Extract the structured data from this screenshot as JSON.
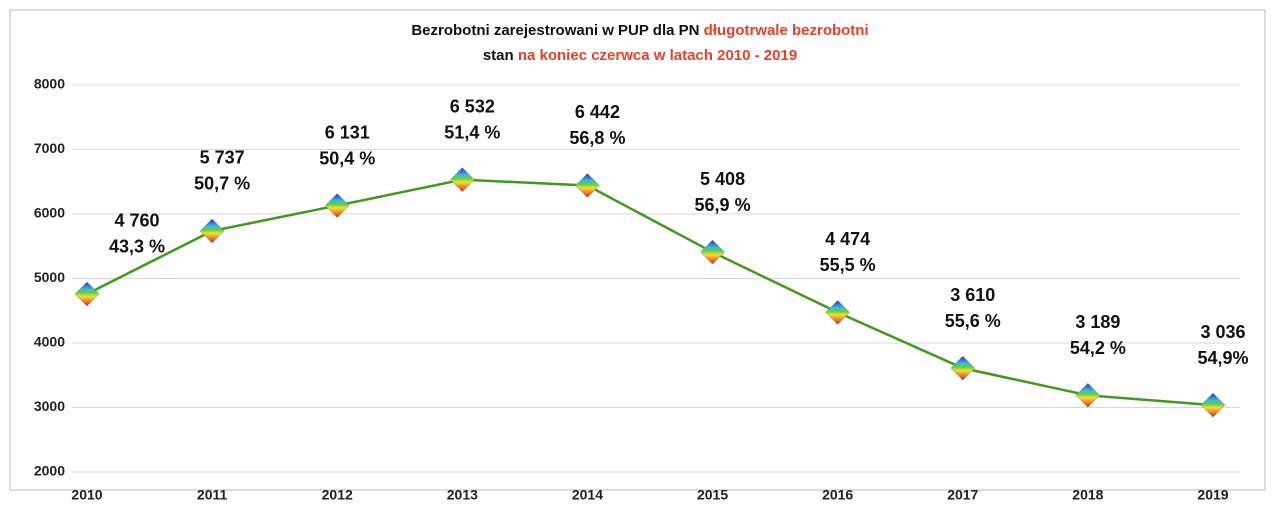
{
  "chart_data": {
    "type": "line",
    "title_line1": [
      "Bezrobotni zarejestrowani w PUP dla PN ",
      "długotrwale bezrobotni"
    ],
    "title_line2": [
      "stan ",
      "na koniec czerwca w latach 2010 - 2019"
    ],
    "title_colors": [
      "#111111",
      "#e8402a"
    ],
    "categories": [
      "2010",
      "2011",
      "2012",
      "2013",
      "2014",
      "2015",
      "2016",
      "2017",
      "2018",
      "2019"
    ],
    "values": [
      4760,
      5737,
      6131,
      6532,
      6442,
      5408,
      4474,
      3610,
      3189,
      3036
    ],
    "value_labels": [
      "4 760",
      "5 737",
      "6 131",
      "6 532",
      "6 442",
      "5 408",
      "4 474",
      "3 610",
      "3 189",
      "3 036"
    ],
    "shares": [
      43.3,
      50.7,
      50.4,
      51.4,
      56.8,
      56.9,
      55.5,
      55.6,
      54.2,
      54.9
    ],
    "share_labels": [
      "43,3 %",
      "50,7 %",
      "50,4 %",
      "51,4 %",
      "56,8 %",
      "56,9 %",
      "55,5 %",
      "55,6 %",
      "54,2 %",
      "54,9%"
    ],
    "color": "#3f9a1e",
    "ylim": [
      2000,
      8000
    ],
    "yticks": [
      2000,
      3000,
      4000,
      5000,
      6000,
      7000,
      8000
    ],
    "grid": true
  }
}
